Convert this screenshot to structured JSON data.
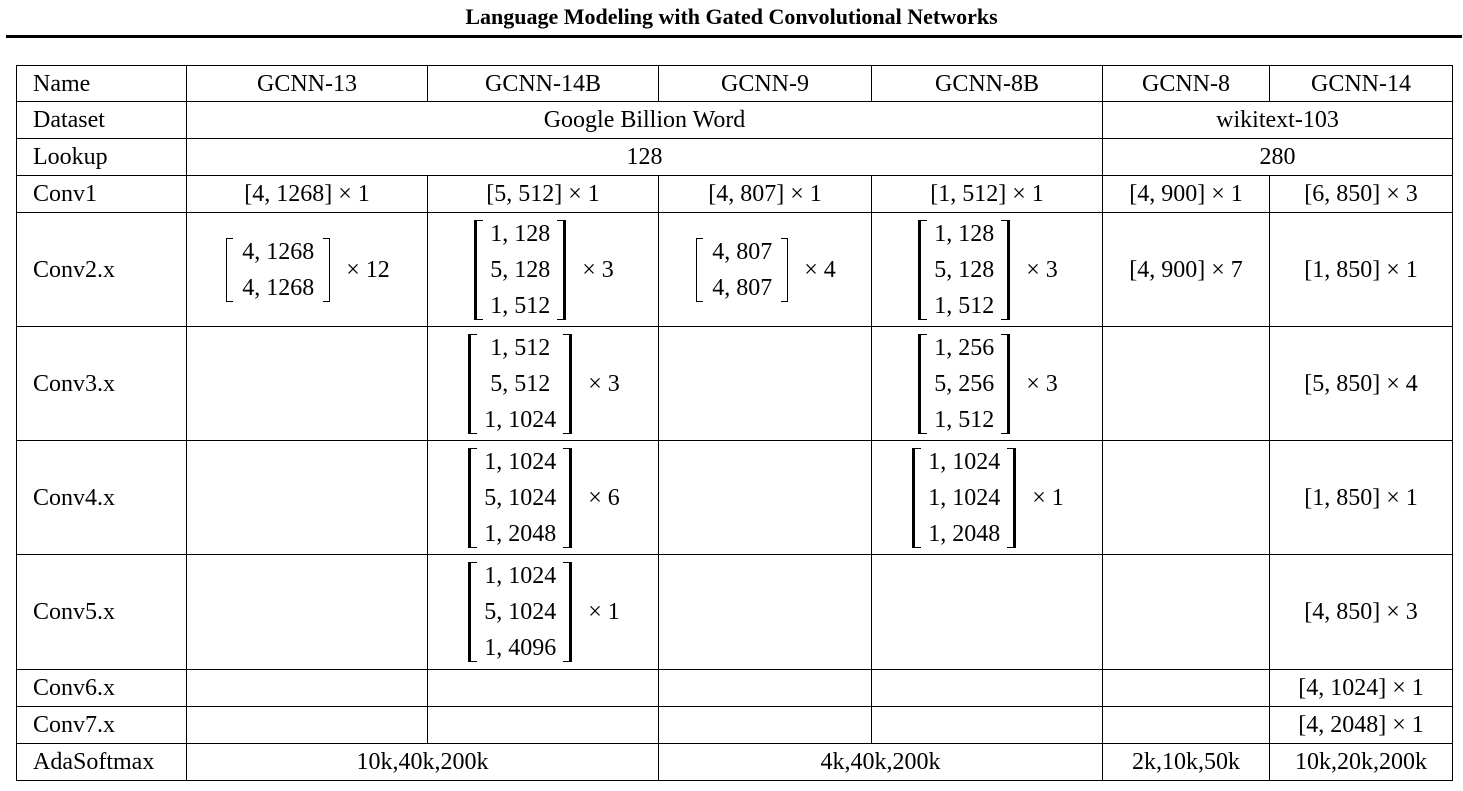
{
  "page_title": "Language Modeling with Gated Convolutional Networks",
  "columns": [
    "Name",
    "GCNN-13",
    "GCNN-14B",
    "GCNN-9",
    "GCNN-8B",
    "GCNN-8",
    "GCNN-14"
  ],
  "dataset": {
    "label": "Dataset",
    "gbw": "Google Billion Word",
    "wiki": "wikitext-103"
  },
  "lookup": {
    "label": "Lookup",
    "gbw": "128",
    "wiki": "280"
  },
  "conv1": {
    "label": "Conv1",
    "cells": [
      "[4, 1268] × 1",
      "[5, 512] × 1",
      "[4, 807] × 1",
      "[1, 512] × 1",
      "[4, 900] × 1",
      "[6, 850] × 3"
    ]
  },
  "conv2": {
    "label": "Conv2.x",
    "gcnn13": {
      "rows": [
        "4, 1268",
        "4, 1268"
      ],
      "mult": "× 12"
    },
    "gcnn14b": {
      "rows": [
        "1, 128",
        "5, 128",
        "1, 512"
      ],
      "mult": "× 3"
    },
    "gcnn9": {
      "rows": [
        "4, 807",
        "4, 807"
      ],
      "mult": "× 4"
    },
    "gcnn8b": {
      "rows": [
        "1, 128",
        "5, 128",
        "1, 512"
      ],
      "mult": "× 3"
    },
    "gcnn8": "[4, 900] × 7",
    "gcnn14": "[1, 850] × 1"
  },
  "conv3": {
    "label": "Conv3.x",
    "gcnn14b": {
      "rows": [
        "1, 512",
        "5, 512",
        "1, 1024"
      ],
      "mult": "× 3"
    },
    "gcnn8b": {
      "rows": [
        "1, 256",
        "5, 256",
        "1, 512"
      ],
      "mult": "× 3"
    },
    "gcnn14": "[5, 850] × 4"
  },
  "conv4": {
    "label": "Conv4.x",
    "gcnn14b": {
      "rows": [
        "1, 1024",
        "5, 1024",
        "1, 2048"
      ],
      "mult": "× 6"
    },
    "gcnn8b": {
      "rows": [
        "1, 1024",
        "1, 1024",
        "1, 2048"
      ],
      "mult": "× 1"
    },
    "gcnn14": "[1, 850] × 1"
  },
  "conv5": {
    "label": "Conv5.x",
    "gcnn14b": {
      "rows": [
        "1, 1024",
        "5, 1024",
        "1, 4096"
      ],
      "mult": "× 1"
    },
    "gcnn14": "[4, 850] × 3"
  },
  "conv6": {
    "label": "Conv6.x",
    "gcnn14": "[4, 1024] × 1"
  },
  "conv7": {
    "label": "Conv7.x",
    "gcnn14": "[4, 2048] × 1"
  },
  "adasoftmax": {
    "label": "AdaSoftmax",
    "a": "10k,40k,200k",
    "b": "4k,40k,200k",
    "c": "2k,10k,50k",
    "d": "10k,20k,200k"
  }
}
